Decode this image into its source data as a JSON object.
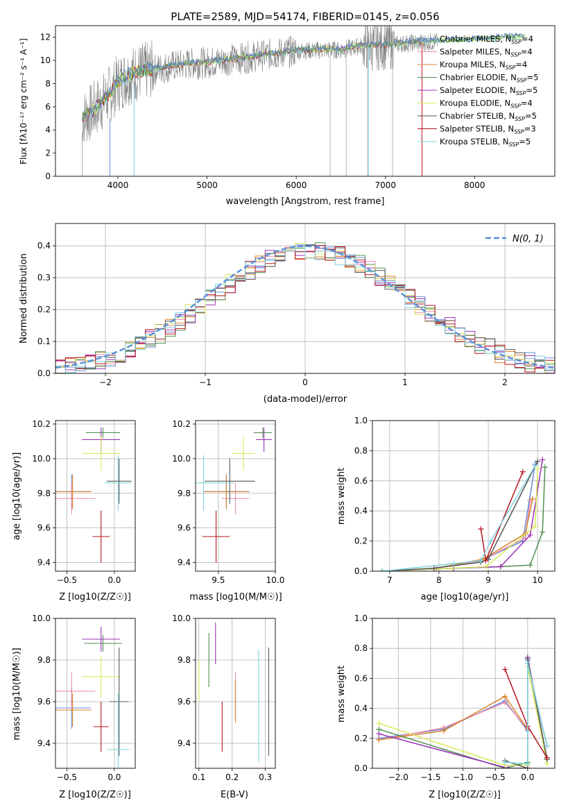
{
  "figure_title": "PLATE=2589, MJD=54174, FIBERID=0145, z=0.056",
  "series": [
    {
      "name": "Chabrier MILES",
      "nssp": "4",
      "color": "#6a89d8"
    },
    {
      "name": "Salpeter MILES",
      "nssp": "4",
      "color": "#e88aa8"
    },
    {
      "name": "Kroupa MILES",
      "nssp": "4",
      "color": "#d9822b"
    },
    {
      "name": "Chabrier ELODIE",
      "nssp": "5",
      "color": "#4f8f4f"
    },
    {
      "name": "Salpeter ELODIE",
      "nssp": "5",
      "color": "#9b30b8"
    },
    {
      "name": "Kroupa ELODIE",
      "nssp": "4",
      "color": "#d8ea5a"
    },
    {
      "name": "Chabrier STELIB",
      "nssp": "5",
      "color": "#555555"
    },
    {
      "name": "Salpeter STELIB",
      "nssp": "3",
      "color": "#b5141e"
    },
    {
      "name": "Kroupa STELIB",
      "nssp": "5",
      "color": "#7fd3dd"
    }
  ],
  "chart_data": [
    {
      "id": "spectrum",
      "type": "line",
      "title": "PLATE=2589, MJD=54174, FIBERID=0145, z=0.056",
      "xlabel": "wavelength [Angstrom, rest frame]",
      "ylabel": "Flux [fλ10⁻¹⁷ erg cm⁻² s⁻¹ A⁻¹]",
      "xlim": [
        3300,
        8900
      ],
      "ylim": [
        0,
        13
      ],
      "xticks": [
        4000,
        5000,
        6000,
        7000,
        8000
      ],
      "yticks": [
        0,
        2,
        4,
        6,
        8,
        10,
        12
      ],
      "grid": false,
      "legend": "right",
      "data_color": "#808080",
      "continuum": {
        "x": [
          3600,
          3700,
          3800,
          3900,
          4000,
          4100,
          4200,
          4400,
          4600,
          4800,
          5000,
          5200,
          5500,
          5800,
          6000,
          6300,
          6500,
          6700,
          7000,
          7300,
          7500,
          7800,
          8000,
          8300,
          8500
        ],
        "y": [
          5.0,
          5.5,
          6.2,
          7.0,
          8.0,
          8.6,
          8.9,
          9.2,
          9.5,
          9.7,
          9.8,
          10.0,
          10.3,
          10.6,
          10.8,
          10.9,
          10.9,
          11.2,
          11.3,
          11.5,
          11.6,
          11.7,
          11.8,
          11.9,
          12.0
        ]
      }
    },
    {
      "id": "residuals",
      "type": "line",
      "xlabel": "(data-model)/error",
      "ylabel": "Normed distribution",
      "xlim": [
        -2.5,
        2.5
      ],
      "ylim": [
        0,
        0.47
      ],
      "xticks": [
        -2,
        -1,
        0,
        1,
        2
      ],
      "yticks": [
        0.0,
        0.1,
        0.2,
        0.3,
        0.4
      ],
      "grid": true,
      "legend": "top-right",
      "legend_label": "N(0, 1)",
      "gaussian_color": "#5b8fd9",
      "bin_width": 0.1
    },
    {
      "id": "age_vs_z",
      "type": "scatter",
      "xlabel": "Z [log10(Z/Z☉)]",
      "ylabel": "age  [log10(age/yr)]",
      "xlim": [
        -0.62,
        0.22
      ],
      "ylim": [
        9.35,
        10.22
      ],
      "xticks": [
        -0.5,
        0.0
      ],
      "yticks": [
        9.4,
        9.6,
        9.8,
        10.0,
        10.2
      ],
      "grid": true,
      "points": [
        {
          "series": 0,
          "x": -0.45,
          "y": 9.81,
          "xerr": 0.2,
          "yerr": 0.1
        },
        {
          "series": 1,
          "x": -0.45,
          "y": 9.77,
          "xerr": 0.25,
          "yerr": 0.09
        },
        {
          "series": 2,
          "x": -0.44,
          "y": 9.81,
          "xerr": 0.2,
          "yerr": 0.1
        },
        {
          "series": 3,
          "x": -0.12,
          "y": 10.15,
          "xerr": 0.18,
          "yerr": 0.03
        },
        {
          "series": 4,
          "x": -0.14,
          "y": 10.11,
          "xerr": 0.2,
          "yerr": 0.07
        },
        {
          "series": 5,
          "x": -0.14,
          "y": 10.03,
          "xerr": 0.2,
          "yerr": 0.1
        },
        {
          "series": 6,
          "x": 0.05,
          "y": 9.87,
          "xerr": 0.13,
          "yerr": 0.13
        },
        {
          "series": 7,
          "x": -0.14,
          "y": 9.55,
          "xerr": 0.09,
          "yerr": 0.15
        },
        {
          "series": 8,
          "x": 0.04,
          "y": 9.86,
          "xerr": 0.14,
          "yerr": 0.16
        }
      ]
    },
    {
      "id": "age_vs_mass",
      "type": "scatter",
      "xlabel": "mass [log10(M/M☉)]",
      "xlim": [
        9.3,
        10.0
      ],
      "ylim": [
        9.35,
        10.22
      ],
      "xticks": [
        9.5,
        10.0
      ],
      "yticks": [
        9.4,
        9.6,
        9.8,
        10.0,
        10.2
      ],
      "grid": true,
      "points": [
        {
          "series": 0,
          "x": 9.57,
          "y": 9.81,
          "xerr": 0.2,
          "yerr": 0.1
        },
        {
          "series": 1,
          "x": 9.65,
          "y": 9.77,
          "xerr": 0.12,
          "yerr": 0.09
        },
        {
          "series": 2,
          "x": 9.57,
          "y": 9.81,
          "xerr": 0.2,
          "yerr": 0.1
        },
        {
          "series": 3,
          "x": 9.89,
          "y": 10.15,
          "xerr": 0.08,
          "yerr": 0.03
        },
        {
          "series": 4,
          "x": 9.9,
          "y": 10.11,
          "xerr": 0.07,
          "yerr": 0.07
        },
        {
          "series": 5,
          "x": 9.72,
          "y": 10.03,
          "xerr": 0.1,
          "yerr": 0.1
        },
        {
          "series": 6,
          "x": 9.6,
          "y": 9.87,
          "xerr": 0.22,
          "yerr": 0.13
        },
        {
          "series": 7,
          "x": 9.48,
          "y": 9.55,
          "xerr": 0.12,
          "yerr": 0.15
        },
        {
          "series": 8,
          "x": 9.37,
          "y": 9.86,
          "xerr": 0.27,
          "yerr": 0.16
        }
      ]
    },
    {
      "id": "mass_weight_vs_age",
      "type": "line",
      "xlabel": "age  [log10(age/yr)]",
      "ylabel": "mass weight",
      "xlim": [
        6.65,
        10.35
      ],
      "ylim": [
        0,
        1.0
      ],
      "xticks": [
        7,
        8,
        9,
        10
      ],
      "yticks": [
        0.0,
        0.2,
        0.4,
        0.6,
        0.8,
        1.0
      ],
      "grid": true,
      "lines": [
        {
          "series": 0,
          "x": [
            6.85,
            7.9,
            8.85,
            9.7,
            9.95
          ],
          "y": [
            0.0,
            0.02,
            0.07,
            0.2,
            0.71
          ]
        },
        {
          "series": 1,
          "x": [
            6.85,
            7.95,
            8.85,
            9.75,
            9.85
          ],
          "y": [
            0.0,
            0.02,
            0.07,
            0.22,
            0.47
          ]
        },
        {
          "series": 2,
          "x": [
            6.85,
            7.95,
            8.9,
            9.75,
            9.9
          ],
          "y": [
            0.0,
            0.02,
            0.08,
            0.25,
            0.48
          ]
        },
        {
          "series": 3,
          "x": [
            6.85,
            8.3,
            9.25,
            9.85,
            10.1,
            10.15
          ],
          "y": [
            0.0,
            0.02,
            0.03,
            0.04,
            0.26,
            0.69
          ]
        },
        {
          "series": 4,
          "x": [
            6.85,
            8.3,
            9.25,
            9.85,
            10.1
          ],
          "y": [
            0.0,
            0.02,
            0.03,
            0.24,
            0.74
          ]
        },
        {
          "series": 5,
          "x": [
            6.85,
            8.25,
            8.95,
            9.95,
            10.0
          ],
          "y": [
            0.0,
            0.02,
            0.03,
            0.3,
            0.68
          ]
        },
        {
          "series": 6,
          "x": [
            6.85,
            7.9,
            8.85,
            9.0,
            10.0
          ],
          "y": [
            0.0,
            0.02,
            0.06,
            0.08,
            0.73
          ]
        },
        {
          "series": 7,
          "x": [
            8.85,
            8.95,
            9.7
          ],
          "y": [
            0.28,
            0.07,
            0.66
          ]
        },
        {
          "series": 8,
          "x": [
            6.85,
            8.3,
            8.85,
            9.05,
            9.95
          ],
          "y": [
            0.0,
            0.05,
            0.07,
            0.2,
            0.7
          ]
        }
      ]
    },
    {
      "id": "mass_vs_z",
      "type": "scatter",
      "xlabel": "Z [log10(Z/Z☉)]",
      "ylabel": "mass [log10(M/M☉)]",
      "xlim": [
        -0.62,
        0.22
      ],
      "ylim": [
        9.28,
        10.0
      ],
      "xticks": [
        -0.5,
        0.0
      ],
      "yticks": [
        9.4,
        9.6,
        9.8,
        10.0
      ],
      "grid": true,
      "points": [
        {
          "series": 0,
          "x": -0.45,
          "y": 9.57,
          "xerr": 0.2,
          "yerr": 0.1
        },
        {
          "series": 1,
          "x": -0.45,
          "y": 9.65,
          "xerr": 0.25,
          "yerr": 0.09
        },
        {
          "series": 2,
          "x": -0.44,
          "y": 9.56,
          "xerr": 0.2,
          "yerr": 0.08
        },
        {
          "series": 3,
          "x": -0.12,
          "y": 9.88,
          "xerr": 0.2,
          "yerr": 0.04
        },
        {
          "series": 4,
          "x": -0.14,
          "y": 9.9,
          "xerr": 0.2,
          "yerr": 0.06
        },
        {
          "series": 5,
          "x": -0.14,
          "y": 9.72,
          "xerr": 0.2,
          "yerr": 0.1
        },
        {
          "series": 6,
          "x": 0.05,
          "y": 9.6,
          "xerr": 0.1,
          "yerr": 0.26
        },
        {
          "series": 7,
          "x": -0.14,
          "y": 9.48,
          "xerr": 0.08,
          "yerr": 0.12
        },
        {
          "series": 8,
          "x": 0.04,
          "y": 9.37,
          "xerr": 0.12,
          "yerr": 0.27
        }
      ]
    },
    {
      "id": "mass_vs_ebv",
      "type": "scatter",
      "xlabel": "E(B-V)",
      "xlim": [
        0.09,
        0.33
      ],
      "ylim": [
        9.28,
        10.0
      ],
      "xticks": [
        0.1,
        0.2,
        0.3
      ],
      "yticks": [
        9.4,
        9.6,
        9.8,
        10.0
      ],
      "grid": true,
      "points": [
        {
          "series": 0,
          "x": 0.21,
          "y": 9.6,
          "yerr": 0.1
        },
        {
          "series": 1,
          "x": 0.21,
          "y": 9.65,
          "yerr": 0.09
        },
        {
          "series": 2,
          "x": 0.21,
          "y": 9.6,
          "yerr": 0.1
        },
        {
          "series": 3,
          "x": 0.13,
          "y": 9.8,
          "yerr": 0.13
        },
        {
          "series": 4,
          "x": 0.15,
          "y": 9.88,
          "yerr": 0.1
        },
        {
          "series": 5,
          "x": 0.1,
          "y": 9.7,
          "yerr": 0.1
        },
        {
          "series": 6,
          "x": 0.31,
          "y": 9.6,
          "yerr": 0.26
        },
        {
          "series": 7,
          "x": 0.17,
          "y": 9.48,
          "yerr": 0.12
        },
        {
          "series": 8,
          "x": 0.28,
          "y": 9.58,
          "yerr": 0.27
        }
      ]
    },
    {
      "id": "mass_weight_vs_z",
      "type": "line",
      "xlabel": "Z [log10(Z/Z☉)]",
      "ylabel": "mass weight",
      "xlim": [
        -2.4,
        0.42
      ],
      "ylim": [
        0,
        1.0
      ],
      "xticks": [
        -2.0,
        -1.5,
        -1.0,
        -0.5,
        0.0
      ],
      "yticks": [
        0.0,
        0.2,
        0.4,
        0.6,
        0.8,
        1.0
      ],
      "grid": true,
      "lines": [
        {
          "series": 0,
          "x": [
            -2.3,
            -1.3,
            -0.35,
            0.0,
            0.0
          ],
          "y": [
            0.2,
            0.26,
            0.45,
            0.25,
            0.72
          ]
        },
        {
          "series": 1,
          "x": [
            -2.3,
            -1.3,
            -0.35,
            0.0
          ],
          "y": [
            0.19,
            0.27,
            0.44,
            0.26
          ]
        },
        {
          "series": 2,
          "x": [
            -2.3,
            -1.3,
            -0.35,
            0.0
          ],
          "y": [
            0.19,
            0.25,
            0.48,
            0.26
          ]
        },
        {
          "series": 3,
          "x": [
            -2.3,
            -0.35,
            0.0,
            0.0,
            0.3
          ],
          "y": [
            0.26,
            0.0,
            0.04,
            0.7,
            0.15
          ]
        },
        {
          "series": 4,
          "x": [
            -2.3,
            -0.3,
            0.0,
            0.0,
            0.3
          ],
          "y": [
            0.23,
            0.0,
            0.0,
            0.74,
            0.06
          ]
        },
        {
          "series": 5,
          "x": [
            -2.3,
            -0.35,
            0.0,
            0.0,
            0.3
          ],
          "y": [
            0.3,
            0.02,
            0.02,
            0.68,
            0.03
          ]
        },
        {
          "series": 6,
          "x": [
            -0.35,
            0.0,
            0.0,
            0.3
          ],
          "y": [
            0.05,
            0.0,
            0.73,
            0.06
          ]
        },
        {
          "series": 7,
          "x": [
            -0.35,
            0.0,
            0.3
          ],
          "y": [
            0.66,
            0.28,
            0.07
          ]
        },
        {
          "series": 8,
          "x": [
            -0.35,
            0.0,
            0.0,
            0.3
          ],
          "y": [
            0.04,
            0.03,
            0.7,
            0.15
          ]
        }
      ]
    }
  ]
}
